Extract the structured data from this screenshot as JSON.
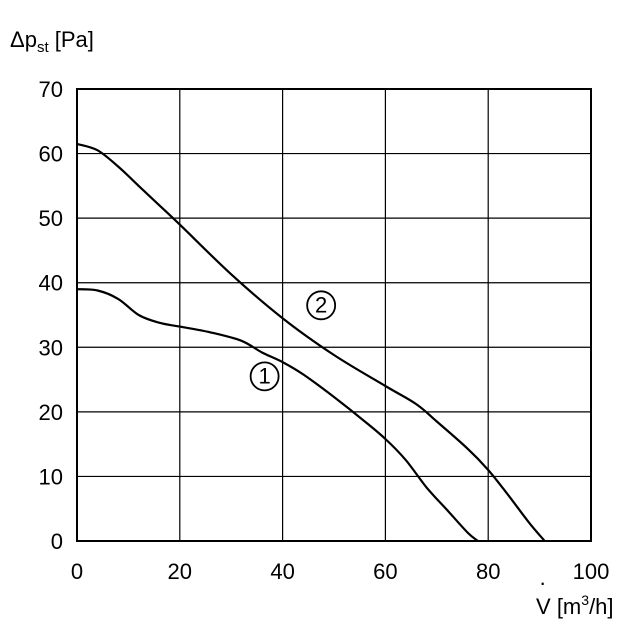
{
  "chart_data": {
    "type": "line",
    "ylabel": {
      "base": "Δp",
      "sub": "st",
      "unit": "[Pa]"
    },
    "xlabel": {
      "symbol": "V",
      "unit_pre": "[m",
      "unit_sup": "3",
      "unit_post": "/h]"
    },
    "xlim": [
      0,
      100
    ],
    "ylim": [
      0,
      70
    ],
    "x_ticks": [
      0,
      20,
      40,
      60,
      80,
      100
    ],
    "y_ticks": [
      0,
      10,
      20,
      30,
      40,
      50,
      60,
      70
    ],
    "grid": true,
    "series": [
      {
        "name": "1",
        "points": [
          [
            0,
            39
          ],
          [
            4,
            38.8
          ],
          [
            8,
            37.5
          ],
          [
            12,
            35
          ],
          [
            16,
            33.8
          ],
          [
            20,
            33.2
          ],
          [
            26,
            32.3
          ],
          [
            32,
            31
          ],
          [
            36,
            29.2
          ],
          [
            40,
            27.7
          ],
          [
            44,
            25.8
          ],
          [
            50,
            22.3
          ],
          [
            56,
            18.5
          ],
          [
            60,
            15.8
          ],
          [
            64,
            12.5
          ],
          [
            68,
            8.3
          ],
          [
            72,
            4.8
          ],
          [
            76,
            1.3
          ],
          [
            78,
            0
          ]
        ]
      },
      {
        "name": "2",
        "points": [
          [
            0,
            61.5
          ],
          [
            4,
            60.5
          ],
          [
            8,
            58
          ],
          [
            12,
            55
          ],
          [
            16,
            52
          ],
          [
            20,
            49
          ],
          [
            30,
            41.3
          ],
          [
            40,
            34.5
          ],
          [
            50,
            28.8
          ],
          [
            60,
            24
          ],
          [
            66,
            21.2
          ],
          [
            70,
            18.5
          ],
          [
            76,
            14.3
          ],
          [
            80,
            11
          ],
          [
            84,
            7
          ],
          [
            88,
            2.8
          ],
          [
            91,
            0
          ]
        ]
      }
    ],
    "annotations": [
      {
        "text": "1",
        "series": "1",
        "x": 36.5,
        "y": 25.5
      },
      {
        "text": "2",
        "series": "2",
        "x": 47.5,
        "y": 36.5
      }
    ]
  }
}
